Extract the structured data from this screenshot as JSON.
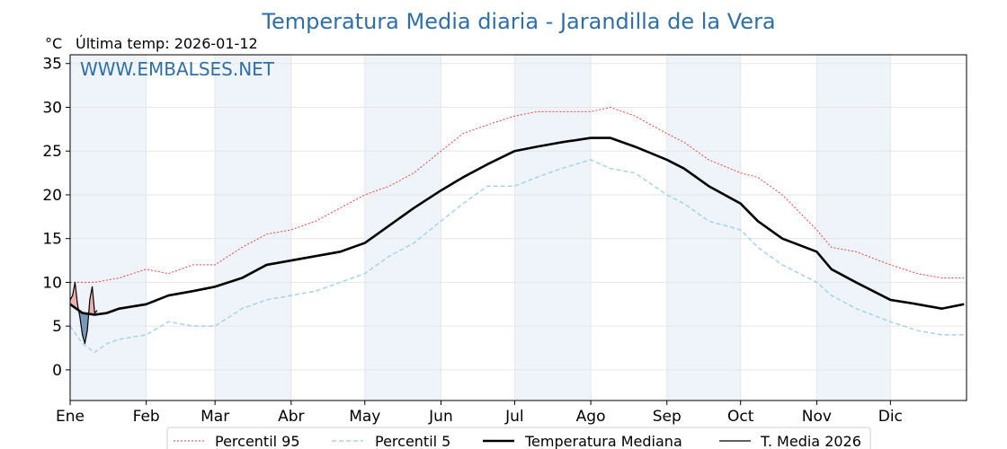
{
  "chart_data": {
    "type": "line",
    "title": "Temperatura Media diaria - Jarandilla de la Vera",
    "unit_label": "°C",
    "last_temp_label": "Última temp: 2026-01-12",
    "watermark": "WWW.EMBALSES.NET",
    "xlabel": "",
    "ylabel": "",
    "x_domain_days": [
      0,
      365
    ],
    "ylim": [
      -3.5,
      36
    ],
    "yticks": [
      0,
      5,
      10,
      15,
      20,
      25,
      30,
      35
    ],
    "xticks": [
      {
        "label": "Ene",
        "day": 0
      },
      {
        "label": "Feb",
        "day": 31
      },
      {
        "label": "Mar",
        "day": 59
      },
      {
        "label": "Abr",
        "day": 90
      },
      {
        "label": "May",
        "day": 120
      },
      {
        "label": "Jun",
        "day": 151
      },
      {
        "label": "Jul",
        "day": 181
      },
      {
        "label": "Ago",
        "day": 212
      },
      {
        "label": "Sep",
        "day": 243
      },
      {
        "label": "Oct",
        "day": 273
      },
      {
        "label": "Nov",
        "day": 304
      },
      {
        "label": "Dic",
        "day": 334
      }
    ],
    "shaded_month_bands": [
      [
        0,
        31
      ],
      [
        59,
        90
      ],
      [
        120,
        151
      ],
      [
        181,
        212
      ],
      [
        243,
        273
      ],
      [
        304,
        334
      ]
    ],
    "grid": true,
    "legend_position": "bottom",
    "series": [
      {
        "name": "Percentil 95",
        "color": "#e8453c",
        "style": "dotted",
        "x": [
          0,
          10,
          20,
          31,
          40,
          50,
          59,
          70,
          80,
          90,
          100,
          110,
          120,
          130,
          140,
          151,
          160,
          170,
          181,
          190,
          200,
          212,
          220,
          230,
          243,
          250,
          260,
          273,
          280,
          290,
          304,
          310,
          320,
          334,
          345,
          355,
          364
        ],
        "values": [
          10,
          10,
          10.5,
          11.5,
          11,
          12,
          12,
          14,
          15.5,
          16,
          17,
          18.5,
          20,
          21,
          22.5,
          25,
          27,
          28,
          29,
          29.5,
          29.5,
          29.5,
          30,
          29,
          27,
          26,
          24,
          22.5,
          22,
          20,
          16,
          14,
          13.5,
          12,
          11,
          10.5,
          10.5
        ]
      },
      {
        "name": "Percentil 5",
        "color": "#a6d4e6",
        "style": "dashed",
        "x": [
          0,
          5,
          10,
          15,
          20,
          31,
          40,
          50,
          59,
          70,
          80,
          90,
          100,
          110,
          120,
          130,
          140,
          151,
          160,
          170,
          181,
          190,
          200,
          212,
          220,
          230,
          243,
          250,
          260,
          273,
          280,
          290,
          304,
          310,
          320,
          334,
          345,
          355,
          364
        ],
        "values": [
          5,
          3,
          2,
          3,
          3.5,
          4,
          5.5,
          5,
          5,
          7,
          8,
          8.5,
          9,
          10,
          11,
          13,
          14.5,
          17,
          19,
          21,
          21,
          22,
          23,
          24,
          23,
          22.5,
          20,
          19,
          17,
          16,
          14,
          12,
          10,
          8.5,
          7,
          5.5,
          4.5,
          4,
          4
        ]
      },
      {
        "name": "Temperatura Mediana",
        "color": "#000000",
        "style": "solid-thick",
        "x": [
          0,
          5,
          10,
          15,
          20,
          31,
          40,
          50,
          59,
          70,
          80,
          90,
          100,
          110,
          120,
          130,
          140,
          151,
          160,
          170,
          181,
          190,
          200,
          212,
          220,
          230,
          243,
          250,
          260,
          273,
          280,
          290,
          304,
          310,
          320,
          334,
          345,
          355,
          364
        ],
        "values": [
          7.5,
          6.5,
          6.3,
          6.5,
          7,
          7.5,
          8.5,
          9,
          9.5,
          10.5,
          12,
          12.5,
          13,
          13.5,
          14.5,
          16.5,
          18.5,
          20.5,
          22,
          23.5,
          25,
          25.5,
          26,
          26.5,
          26.5,
          25.5,
          24,
          23,
          21,
          19,
          17,
          15,
          13.5,
          11.5,
          10,
          8,
          7.5,
          7,
          7.5
        ]
      },
      {
        "name": "T. Media 2026",
        "color": "#000000",
        "style": "solid-thin",
        "x": [
          0,
          1,
          2,
          3,
          4,
          5,
          6,
          7,
          8,
          9,
          10,
          11
        ],
        "values": [
          8,
          8.5,
          10,
          7.5,
          6,
          4,
          3,
          4.5,
          8,
          9.5,
          6.5,
          6.8
        ]
      }
    ],
    "fill_below_median_color": "#5e86ad",
    "fill_above_median_color": "#f0a0a0"
  }
}
